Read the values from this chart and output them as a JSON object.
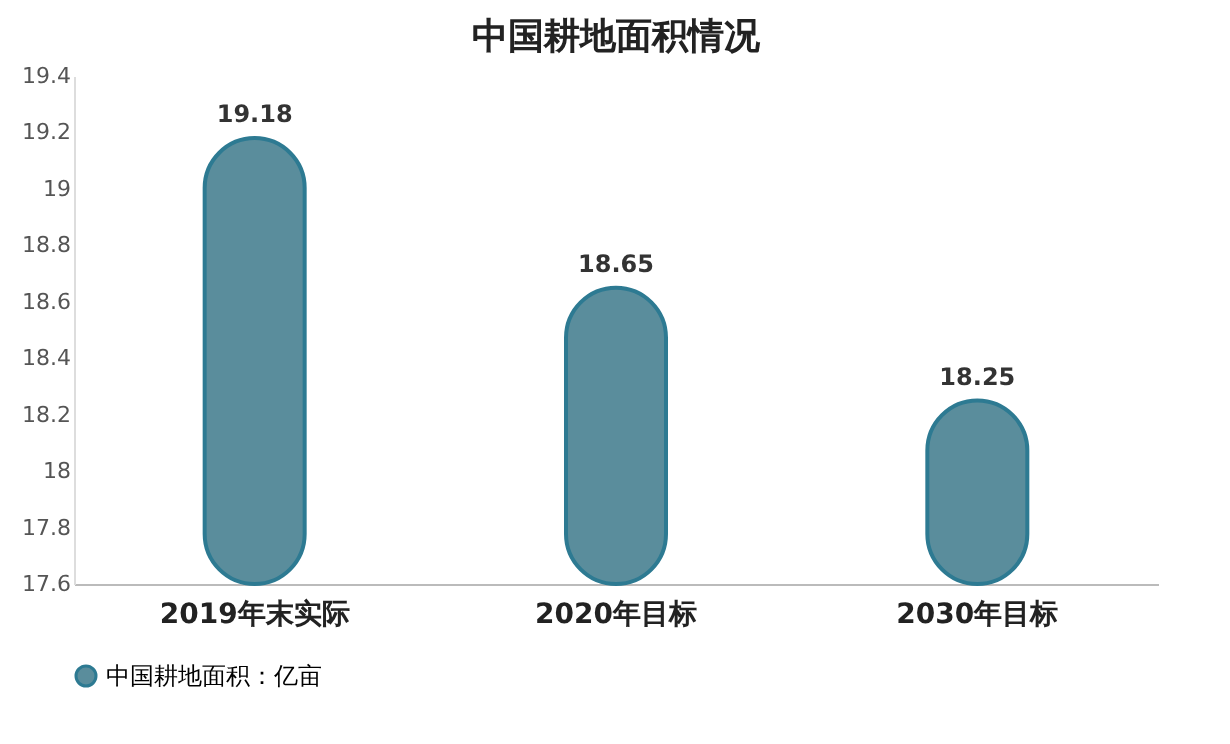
{
  "chart_data": {
    "type": "bar",
    "title": "中国耕地面积情况",
    "categories": [
      "2019年末实际",
      "2020年目标",
      "2030年目标"
    ],
    "series": [
      {
        "name": "中国耕地面积：亿亩",
        "color": "#5a8d9c",
        "values": [
          19.18,
          18.65,
          18.25
        ]
      }
    ],
    "ylim": [
      17.6,
      19.4
    ],
    "yticks": [
      17.6,
      17.8,
      18,
      18.2,
      18.4,
      18.6,
      18.8,
      19,
      19.2,
      19.4
    ],
    "data_labels": true,
    "legend": "bottom",
    "grid": false
  }
}
